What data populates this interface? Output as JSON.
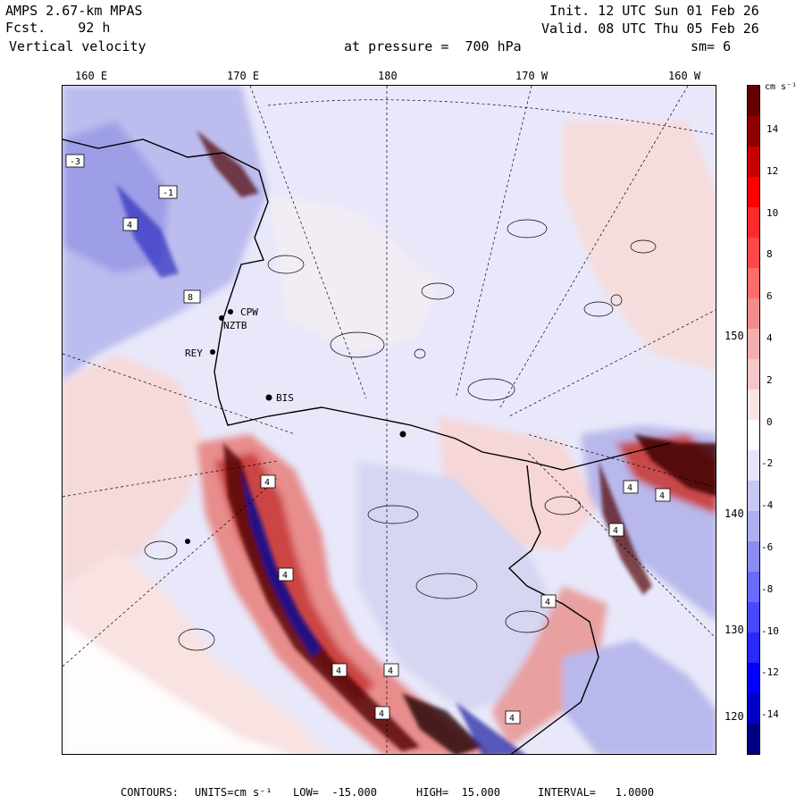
{
  "header": {
    "model": "AMPS 2.67-km MPAS",
    "forecast": "Fcst.    92 h",
    "field": "Vertical velocity",
    "init": "Init. 12 UTC Sun 01 Feb 26",
    "valid": "Valid. 08 UTC Thu 05 Feb 26",
    "pressure": "at pressure =  700 hPa",
    "smoothing": "sm= 6"
  },
  "lon_labels": [
    "160 E",
    "170 E",
    "180",
    "170 W",
    "160 W"
  ],
  "lat_labels_right": [
    "150 W",
    "140 W",
    "130 W",
    "120 W"
  ],
  "stations": [
    "CPW",
    "NZTB",
    "REY",
    "BIS"
  ],
  "colorbar": {
    "units_label": "cm s⁻¹",
    "ticks": [
      "14",
      "12",
      "10",
      "8",
      "6",
      "4",
      "2",
      "0",
      "-2",
      "-4",
      "-6",
      "-8",
      "-10",
      "-12",
      "-14"
    ],
    "colors": [
      "#000080",
      "#0000c8",
      "#0000ff",
      "#2828ff",
      "#4848ff",
      "#6a6aff",
      "#8c8cf0",
      "#aeaef0",
      "#c8c8f4",
      "#e4e4fa",
      "#ffffff",
      "#fae4e4",
      "#f4c8c8",
      "#f0aeae",
      "#f08c8c",
      "#ff6a6a",
      "#ff4848",
      "#ff2828",
      "#ff0000",
      "#c80000",
      "#900000",
      "#640000"
    ]
  },
  "footer": {
    "contours": "CONTOURS:",
    "units": "UNITS=cm s⁻¹",
    "low": "LOW=  -15.000",
    "high": "HIGH=  15.000",
    "interval": "INTERVAL=   1.0000"
  },
  "markers": [
    "-3",
    "-1",
    "4",
    "8",
    "4",
    "4",
    "4",
    "4",
    "4",
    "4",
    "4",
    "4",
    "4",
    "4"
  ]
}
